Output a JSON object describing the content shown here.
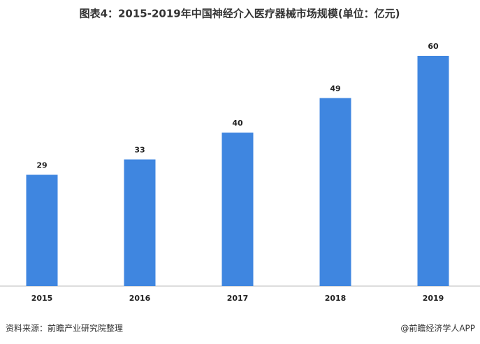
{
  "chart_data": {
    "type": "bar",
    "title": "图表4：2015-2019年中国神经介入医疗器械市场规模(单位：亿元)",
    "categories": [
      "2015",
      "2016",
      "2017",
      "2018",
      "2019"
    ],
    "values": [
      29,
      33,
      40,
      49,
      60
    ],
    "color": "#3f86e0",
    "source": "资料来源：前瞻产业研究院整理",
    "brand": "@前瞻经济学人APP"
  }
}
